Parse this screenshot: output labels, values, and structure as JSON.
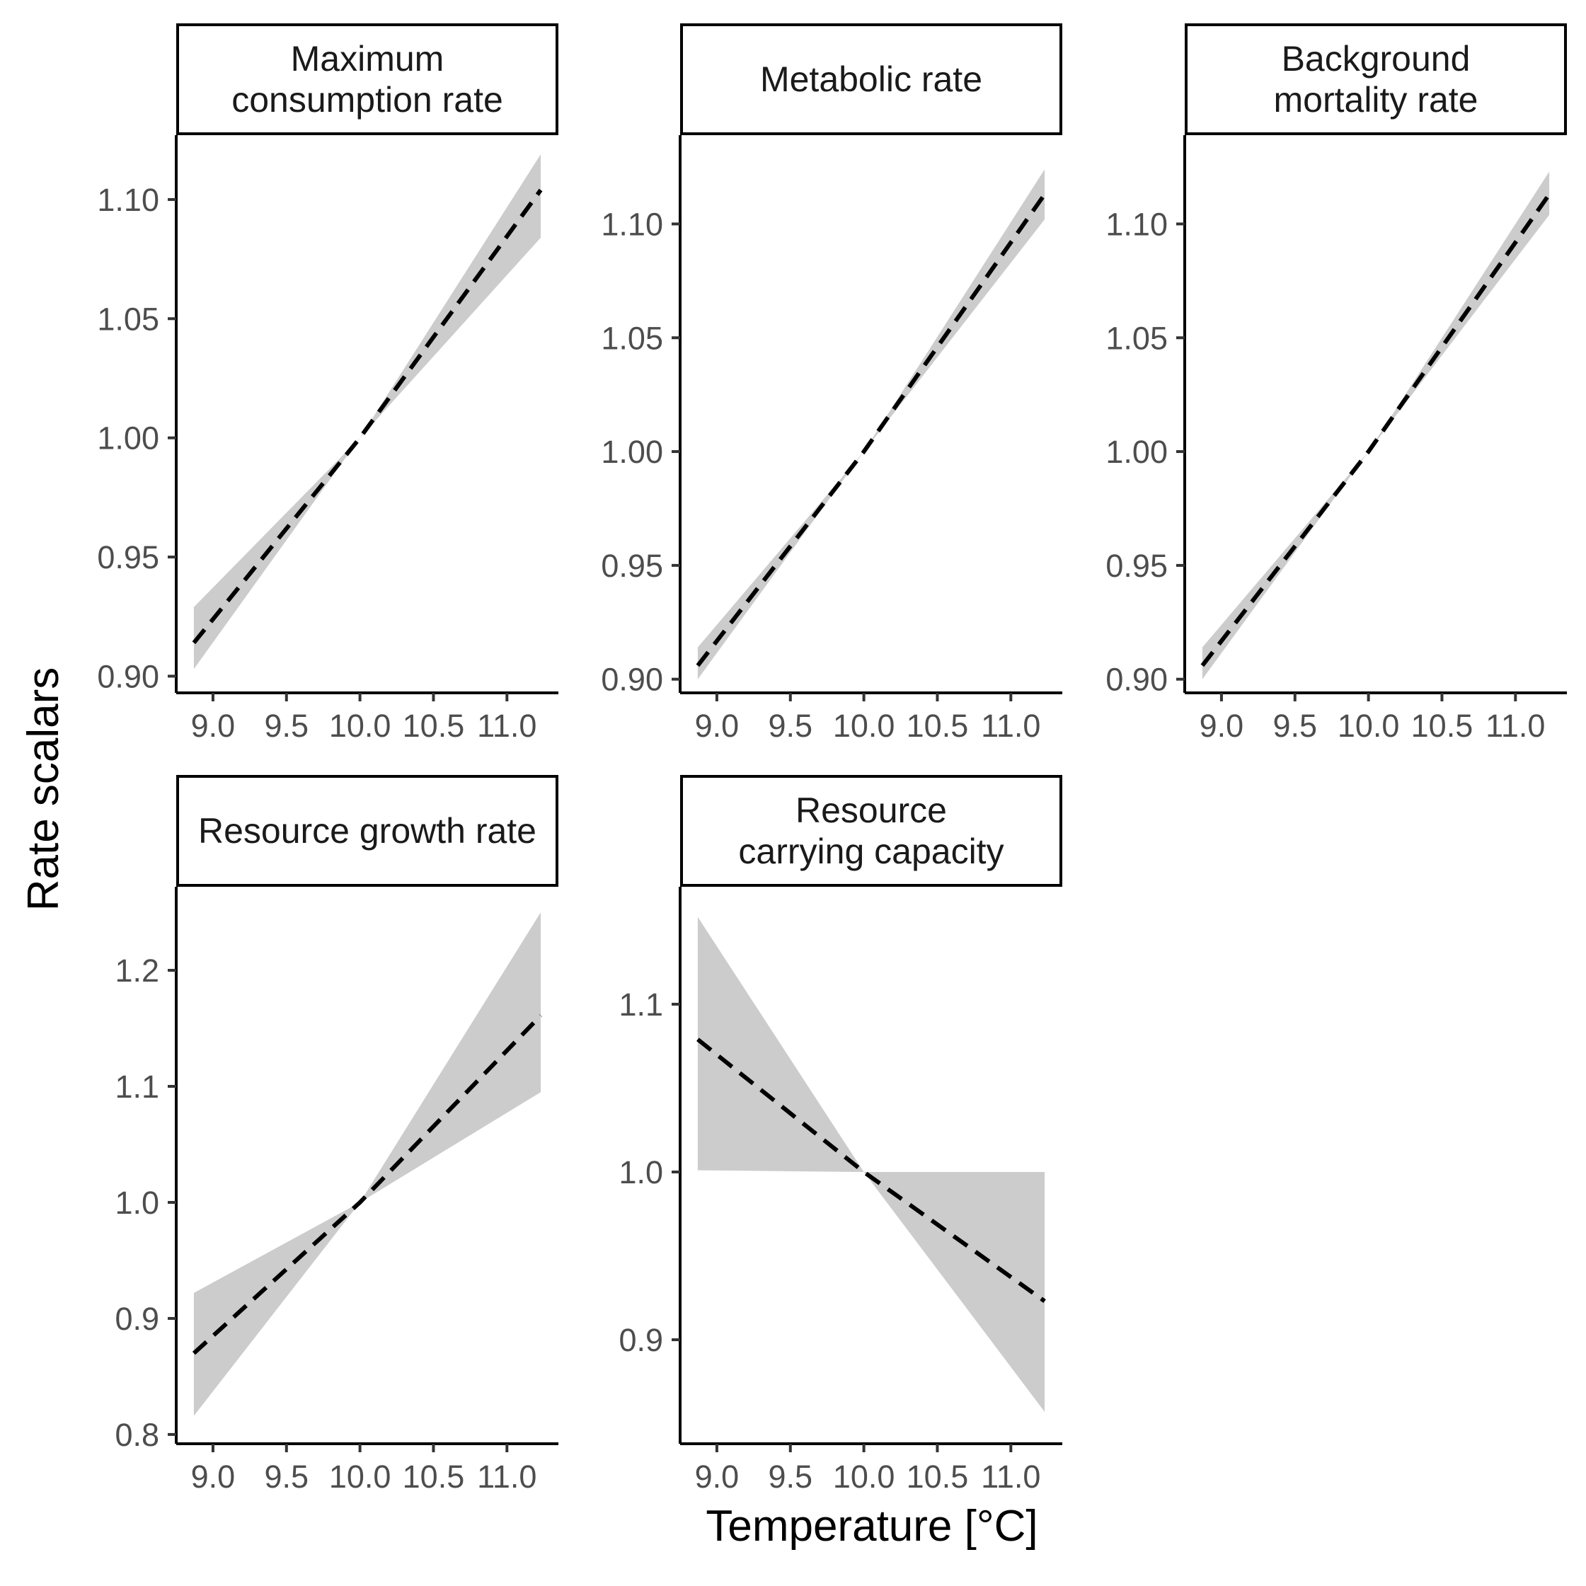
{
  "chart_data": {
    "type": "line",
    "xlabel": "Temperature [°C]",
    "ylabel": "Rate scalars",
    "grid": false,
    "ribbon_color": "#cccccc",
    "line_color": "#000000",
    "line_style": "dashed",
    "panels": [
      {
        "title_lines": [
          "Maximum",
          "consumption rate"
        ],
        "xlim": [
          8.75,
          11.35
        ],
        "ylim": [
          0.893,
          1.127
        ],
        "xticks": [
          9.0,
          9.5,
          10.0,
          10.5,
          11.0
        ],
        "xtick_labels": [
          "9.0",
          "9.5",
          "10.0",
          "10.5",
          "11.0"
        ],
        "yticks": [
          0.9,
          0.95,
          1.0,
          1.05,
          1.1
        ],
        "ytick_labels": [
          "0.90",
          "0.95",
          "1.00",
          "1.05",
          "1.10"
        ],
        "x": [
          8.87,
          10.0,
          11.23
        ],
        "y": [
          0.914,
          1.0,
          1.104
        ],
        "lower": [
          0.903,
          1.0,
          1.084
        ],
        "upper": [
          0.929,
          1.0,
          1.119
        ]
      },
      {
        "title_lines": [
          "Metabolic rate"
        ],
        "xlim": [
          8.75,
          11.35
        ],
        "ylim": [
          0.894,
          1.139
        ],
        "xticks": [
          9.0,
          9.5,
          10.0,
          10.5,
          11.0
        ],
        "xtick_labels": [
          "9.0",
          "9.5",
          "10.0",
          "10.5",
          "11.0"
        ],
        "yticks": [
          0.9,
          0.95,
          1.0,
          1.05,
          1.1
        ],
        "ytick_labels": [
          "0.90",
          "0.95",
          "1.00",
          "1.05",
          "1.10"
        ],
        "x": [
          8.87,
          10.0,
          11.23
        ],
        "y": [
          0.906,
          1.0,
          1.113
        ],
        "lower": [
          0.9,
          1.0,
          1.102
        ],
        "upper": [
          0.914,
          1.0,
          1.124
        ]
      },
      {
        "title_lines": [
          "Background",
          "mortality rate"
        ],
        "xlim": [
          8.75,
          11.35
        ],
        "ylim": [
          0.894,
          1.139
        ],
        "xticks": [
          9.0,
          9.5,
          10.0,
          10.5,
          11.0
        ],
        "xtick_labels": [
          "9.0",
          "9.5",
          "10.0",
          "10.5",
          "11.0"
        ],
        "yticks": [
          0.9,
          0.95,
          1.0,
          1.05,
          1.1
        ],
        "ytick_labels": [
          "0.90",
          "0.95",
          "1.00",
          "1.05",
          "1.10"
        ],
        "x": [
          8.87,
          10.0,
          11.23
        ],
        "y": [
          0.906,
          1.0,
          1.113
        ],
        "lower": [
          0.9,
          1.0,
          1.104
        ],
        "upper": [
          0.914,
          1.0,
          1.123
        ]
      },
      {
        "title_lines": [
          "Resource growth rate"
        ],
        "xlim": [
          8.75,
          11.35
        ],
        "ylim": [
          0.792,
          1.272
        ],
        "xticks": [
          9.0,
          9.5,
          10.0,
          10.5,
          11.0
        ],
        "xtick_labels": [
          "9.0",
          "9.5",
          "10.0",
          "10.5",
          "11.0"
        ],
        "yticks": [
          0.8,
          0.9,
          1.0,
          1.1,
          1.2
        ],
        "ytick_labels": [
          "0.8",
          "0.9",
          "1.0",
          "1.1",
          "1.2"
        ],
        "x": [
          8.87,
          10.0,
          11.23
        ],
        "y": [
          0.87,
          1.0,
          1.161
        ],
        "lower": [
          0.816,
          1.0,
          1.095
        ],
        "upper": [
          0.922,
          1.0,
          1.25
        ]
      },
      {
        "title_lines": [
          "Resource",
          "carrying capacity"
        ],
        "xlim": [
          8.75,
          11.35
        ],
        "ylim": [
          0.838,
          1.17
        ],
        "xticks": [
          9.0,
          9.5,
          10.0,
          10.5,
          11.0
        ],
        "xtick_labels": [
          "9.0",
          "9.5",
          "10.0",
          "10.5",
          "11.0"
        ],
        "yticks": [
          0.9,
          1.0,
          1.1
        ],
        "ytick_labels": [
          "0.9",
          "1.0",
          "1.1"
        ],
        "x": [
          8.87,
          10.0,
          11.23
        ],
        "y": [
          1.079,
          1.0,
          0.923
        ],
        "lower": [
          1.001,
          1.0,
          0.857
        ],
        "upper": [
          1.152,
          1.0,
          1.0
        ]
      }
    ]
  }
}
